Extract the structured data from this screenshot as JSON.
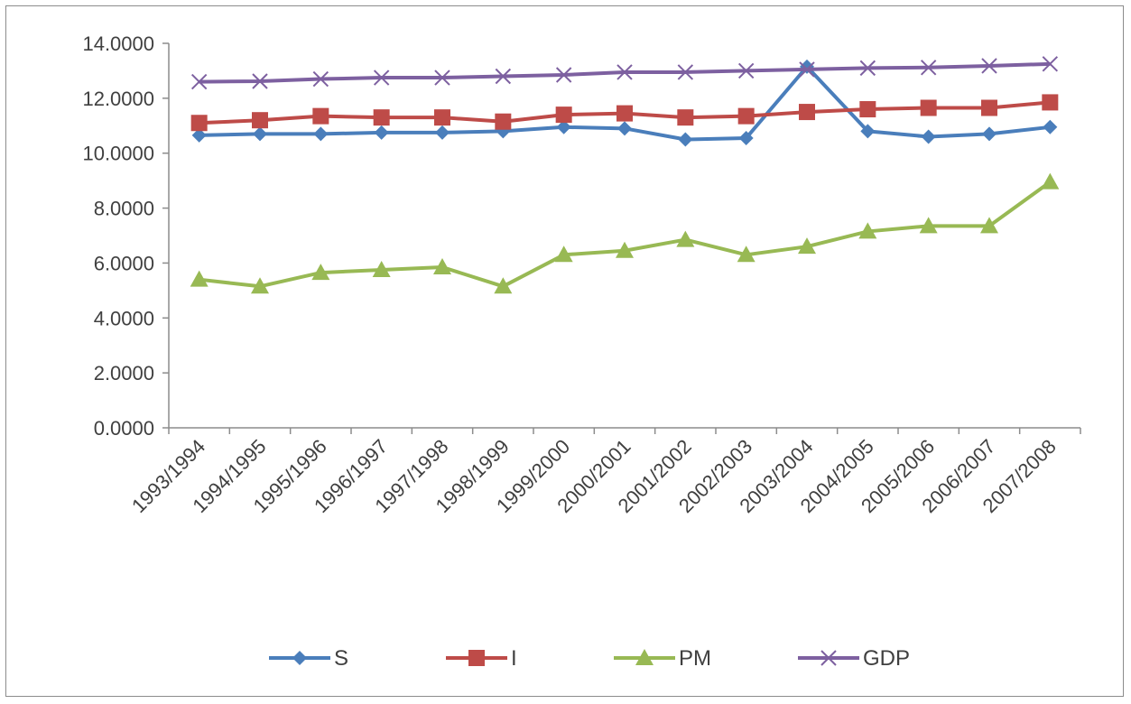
{
  "chart_data": {
    "type": "line",
    "title": "",
    "xlabel": "",
    "ylabel": "",
    "categories": [
      "1993/1994",
      "1994/1995",
      "1995/1996",
      "1996/1997",
      "1997/1998",
      "1998/1999",
      "1999/2000",
      "2000/2001",
      "2001/2002",
      "2002/2003",
      "2003/2004",
      "2004/2005",
      "2005/2006",
      "2006/2007",
      "2007/2008"
    ],
    "ylim": [
      0,
      14
    ],
    "yticks": [
      "0.0000",
      "2.0000",
      "4.0000",
      "6.0000",
      "8.0000",
      "10.0000",
      "12.0000",
      "14.0000"
    ],
    "grid": false,
    "legend_position": "bottom",
    "series": [
      {
        "name": "S",
        "color": "#4a7ebb",
        "marker": "diamond",
        "values": [
          10.65,
          10.7,
          10.7,
          10.75,
          10.75,
          10.8,
          10.95,
          10.9,
          10.5,
          10.55,
          13.15,
          10.8,
          10.6,
          10.7,
          10.95
        ]
      },
      {
        "name": "I",
        "color": "#be4b48",
        "marker": "square",
        "values": [
          11.1,
          11.2,
          11.35,
          11.3,
          11.3,
          11.15,
          11.4,
          11.45,
          11.3,
          11.35,
          11.5,
          11.6,
          11.65,
          11.65,
          11.85
        ]
      },
      {
        "name": "PM",
        "color": "#98b954",
        "marker": "triangle",
        "values": [
          5.4,
          5.15,
          5.65,
          5.75,
          5.85,
          5.15,
          6.3,
          6.45,
          6.85,
          6.3,
          6.6,
          7.15,
          7.35,
          7.35,
          8.95
        ]
      },
      {
        "name": "GDP",
        "color": "#7d60a0",
        "marker": "x",
        "values": [
          12.6,
          12.62,
          12.7,
          12.75,
          12.75,
          12.8,
          12.85,
          12.95,
          12.95,
          13.0,
          13.05,
          13.1,
          13.12,
          13.18,
          13.25
        ]
      }
    ]
  }
}
